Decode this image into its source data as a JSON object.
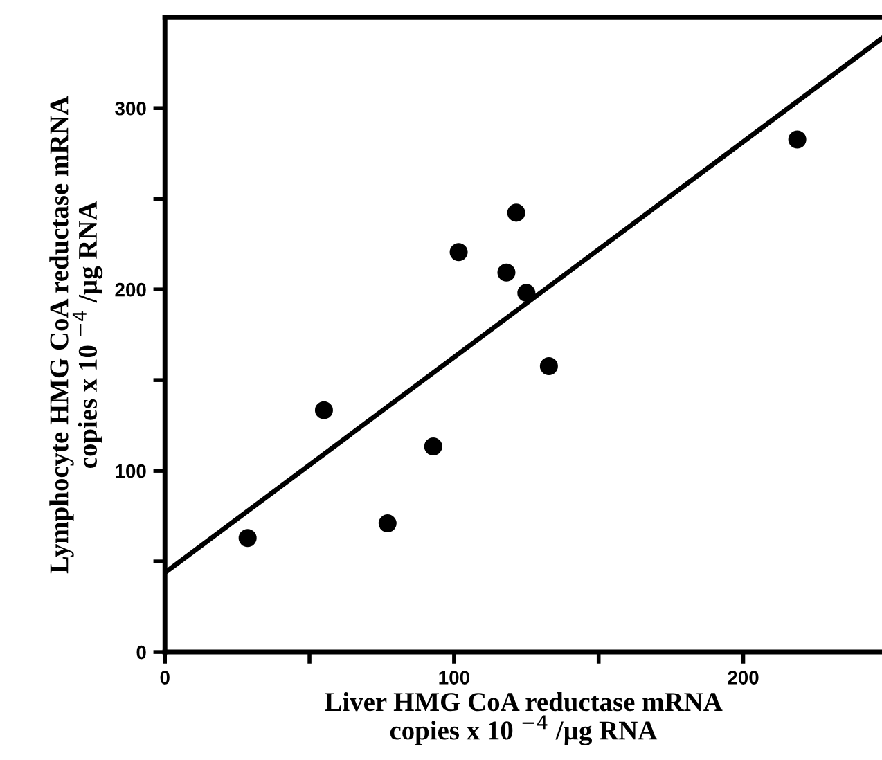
{
  "chart_data": {
    "type": "scatter",
    "xlabel": "Liver HMG CoA reductase mRNA\ncopies x 10 $^{−4}$ /µg RNA",
    "ylabel": "Lymphocyte HMG CoA reductase mRNA\ncopies x 10 $^{−4}$ /µg RNA",
    "series": [
      {
        "color": "#000000",
        "marker": "circle",
        "x": [
          28.6,
          55.0,
          77.0,
          92.8,
          101.6,
          118.1,
          121.5,
          125.0,
          132.8,
          218.7
        ],
        "values": [
          62.9,
          133.4,
          71.0,
          113.4,
          220.6,
          209.3,
          242.3,
          198.1,
          157.7,
          282.7
        ]
      },
      {
        "type": "line",
        "color": "#000000",
        "marker": "none",
        "line_style": "solid",
        "x": [
          0,
          248
        ],
        "values": [
          43.8,
          338.5
        ]
      }
    ],
    "xlim": [
      0,
      248
    ],
    "ylim": [
      0,
      350
    ],
    "xticks": [
      0,
      {
        "value": 50,
        "label": null
      },
      100,
      {
        "value": 150,
        "label": null
      },
      200
    ],
    "yticks": [
      0,
      {
        "value": 50,
        "label": null
      },
      100,
      {
        "value": 150,
        "label": null
      },
      200,
      {
        "value": 250,
        "label": null
      },
      300
    ],
    "grid": false,
    "legend": false
  }
}
